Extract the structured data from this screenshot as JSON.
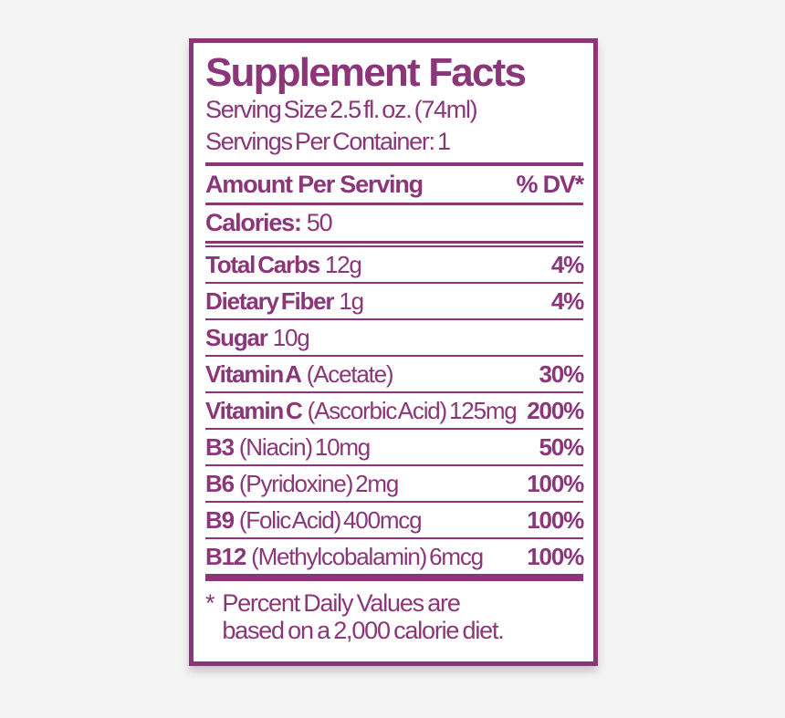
{
  "colors": {
    "purple": "#8b3679",
    "page_background": "#f5f4f5",
    "label_background": "#ffffff"
  },
  "label": {
    "title": "Supplement Facts",
    "serving_size": "Serving Size 2.5 fl. oz. (74ml)",
    "servings_per_container": "Servings Per Container: 1",
    "header": {
      "amount": "Amount Per Serving",
      "dv": "% DV*"
    },
    "calories": {
      "name": "Calories:",
      "value": "50"
    },
    "rows": [
      {
        "name": "Total Carbs",
        "detail": "12g",
        "dv": "4%"
      },
      {
        "name": "Dietary Fiber",
        "detail": "1g",
        "dv": "4%"
      },
      {
        "name": "Sugar",
        "detail": "10g",
        "dv": ""
      },
      {
        "name": "Vitamin A",
        "detail": "(Acetate)",
        "dv": "30%"
      },
      {
        "name": "Vitamin C",
        "detail": "(Ascorbic Acid) 125mg",
        "dv": "200%"
      },
      {
        "name": "B3",
        "detail": "(Niacin) 10mg",
        "dv": "50%"
      },
      {
        "name": "B6",
        "detail": "(Pyridoxine) 2mg",
        "dv": "100%"
      },
      {
        "name": "B9",
        "detail": "(Folic Acid) 400mcg",
        "dv": "100%"
      },
      {
        "name": "B12",
        "detail": "(Methylcobalamin) 6mcg",
        "dv": "100%"
      }
    ],
    "footnote": {
      "asterisk": "*",
      "line1": "Percent Daily Values are",
      "line2": "based on a 2,000 calorie diet."
    }
  }
}
